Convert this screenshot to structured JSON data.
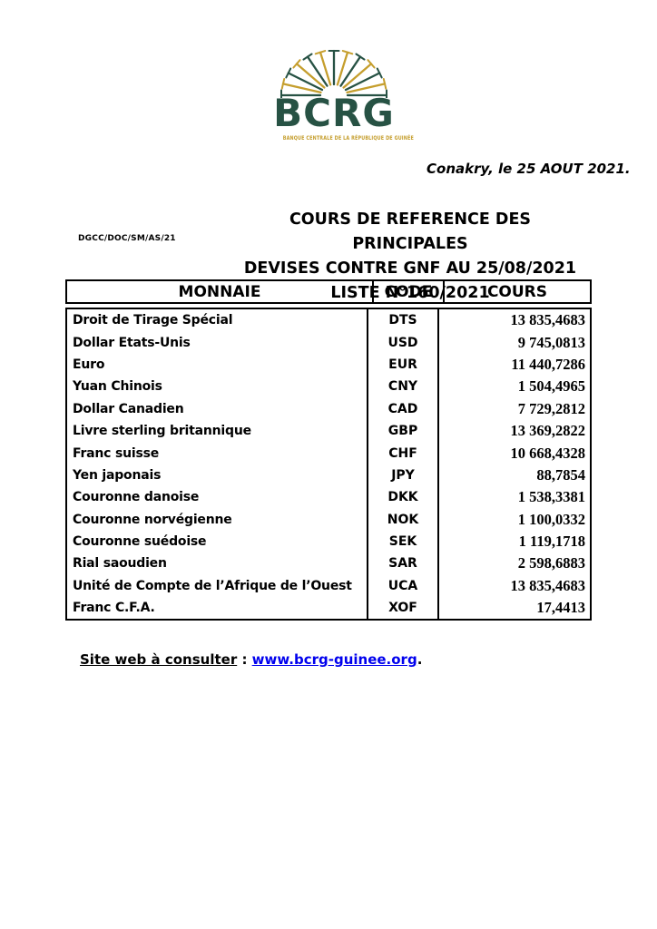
{
  "logo": {
    "text": "BCRG",
    "tagline": "BANQUE CENTRALE DE LA RÉPUBLIQUE DE GUINÉE",
    "green_color": "#275244",
    "gold_color": "#c59e2d"
  },
  "date_line": "Conakry, le 25 AOUT 2021.",
  "reference": "DGCC/DOC/SM/AS/21",
  "title": {
    "line1": "COURS DE REFERENCE DES PRINCIPALES",
    "line2": "DEVISES CONTRE GNF AU 25/08/2021",
    "line3": "LISTE N°160/2021"
  },
  "table": {
    "headers": {
      "monnaie": "MONNAIE",
      "code": "CODE",
      "cours": "COURS"
    },
    "rows": [
      {
        "monnaie": "Droit de Tirage Spécial",
        "code": "DTS",
        "cours": "13 835,4683"
      },
      {
        "monnaie": "Dollar Etats-Unis",
        "code": "USD",
        "cours": "9 745,0813"
      },
      {
        "monnaie": "Euro",
        "code": "EUR",
        "cours": "11 440,7286"
      },
      {
        "monnaie": "Yuan Chinois",
        "code": "CNY",
        "cours": "1 504,4965"
      },
      {
        "monnaie": "Dollar Canadien",
        "code": "CAD",
        "cours": "7 729,2812"
      },
      {
        "monnaie": "Livre sterling britannique",
        "code": "GBP",
        "cours": "13 369,2822"
      },
      {
        "monnaie": "Franc suisse",
        "code": "CHF",
        "cours": "10 668,4328"
      },
      {
        "monnaie": "Yen japonais",
        "code": "JPY",
        "cours": "88,7854"
      },
      {
        "monnaie": "Couronne danoise",
        "code": "DKK",
        "cours": "1 538,3381"
      },
      {
        "monnaie": "Couronne norvégienne",
        "code": "NOK",
        "cours": "1 100,0332"
      },
      {
        "monnaie": "Couronne suédoise",
        "code": "SEK",
        "cours": "1 119,1718"
      },
      {
        "monnaie": "Rial saoudien",
        "code": "SAR",
        "cours": "2 598,6883"
      },
      {
        "monnaie": "Unité de Compte de l’Afrique de l’Ouest",
        "code": "UCA",
        "cours": "13 835,4683"
      },
      {
        "monnaie": "Franc C.F.A.",
        "code": "XOF",
        "cours": "17,4413"
      }
    ]
  },
  "footer": {
    "label": "Site web à consulter",
    "separator": " : ",
    "link": "www.bcrg-guinee.org",
    "suffix": ".",
    "link_color": "#0000ee"
  }
}
